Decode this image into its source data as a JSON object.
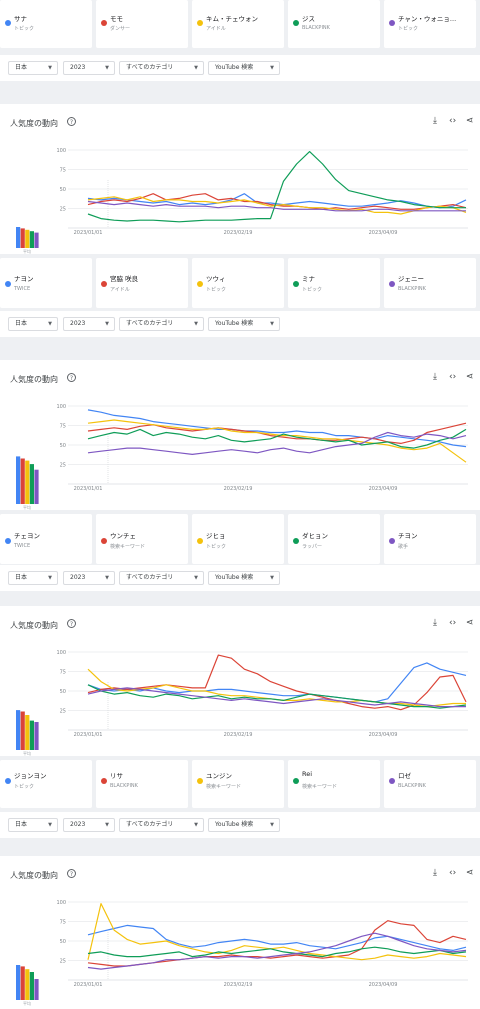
{
  "colors": [
    "#4285f4",
    "#db4437",
    "#f4c20d",
    "#0f9d58",
    "#7e57c2"
  ],
  "filters": {
    "region": "日本",
    "year": "2023",
    "category": "すべてのカテゴリ",
    "source": "YouTube 検索"
  },
  "panel_title": "人気度の動向",
  "axis_caption": "平均",
  "term_rows": [
    [
      {
        "name": "サナ",
        "sub": "トピック"
      },
      {
        "name": "モモ",
        "sub": "ダンサー"
      },
      {
        "name": "キム・チェウォン",
        "sub": "アイドル"
      },
      {
        "name": "ジス",
        "sub": "BLACKPINK"
      },
      {
        "name": "チャン・ウォニョ...",
        "sub": "トピック"
      }
    ],
    [
      {
        "name": "ナヨン",
        "sub": "TWICE"
      },
      {
        "name": "宮脇 咲良",
        "sub": "アイドル"
      },
      {
        "name": "ツウィ",
        "sub": "トピック"
      },
      {
        "name": "ミナ",
        "sub": "トピック"
      },
      {
        "name": "ジェニー",
        "sub": "BLACKPINK"
      }
    ],
    [
      {
        "name": "チェヨン",
        "sub": "TWICE"
      },
      {
        "name": "ウンチェ",
        "sub": "検索キーワード"
      },
      {
        "name": "ジヒョ",
        "sub": "トピック"
      },
      {
        "name": "ダヒョン",
        "sub": "ラッパー"
      },
      {
        "name": "チヨン",
        "sub": "歌手"
      }
    ],
    [
      {
        "name": "ジョンヨン",
        "sub": "トピック"
      },
      {
        "name": "リサ",
        "sub": "BLACKPINK"
      },
      {
        "name": "ユンジン",
        "sub": "検索キーワード"
      },
      {
        "name": "Rei",
        "sub": "検索キーワード"
      },
      {
        "name": "ロゼ",
        "sub": "BLACKPINK"
      }
    ]
  ],
  "chart_data": [
    {
      "type": "line",
      "title": "人気度の動向",
      "x_ticks": [
        "2023/01/01",
        "2023/02/19",
        "2023/04/09"
      ],
      "y_ticks": [
        25,
        50,
        75,
        100
      ],
      "ylim": [
        0,
        100
      ],
      "note_label": "",
      "averages": [
        30,
        28,
        26,
        24,
        22
      ],
      "series": [
        {
          "values": [
            38,
            36,
            38,
            36,
            34,
            32,
            34,
            30,
            32,
            30,
            32,
            36,
            44,
            32,
            32,
            30,
            32,
            34,
            32,
            30,
            28,
            28,
            30,
            32,
            35,
            32,
            28,
            26,
            28,
            36
          ]
        },
        {
          "values": [
            30,
            34,
            36,
            34,
            38,
            44,
            36,
            38,
            42,
            44,
            36,
            38,
            34,
            34,
            30,
            28,
            28,
            26,
            24,
            26,
            24,
            26,
            28,
            26,
            24,
            24,
            26,
            28,
            30,
            26
          ]
        },
        {
          "values": [
            36,
            38,
            40,
            36,
            40,
            34,
            36,
            36,
            34,
            34,
            32,
            34,
            36,
            32,
            28,
            30,
            28,
            26,
            26,
            24,
            22,
            24,
            20,
            20,
            18,
            22,
            26,
            28,
            26,
            20
          ]
        },
        {
          "values": [
            18,
            12,
            10,
            9,
            10,
            10,
            9,
            8,
            9,
            10,
            10,
            10,
            11,
            12,
            12,
            60,
            82,
            98,
            82,
            62,
            48,
            44,
            40,
            36,
            34,
            30,
            28,
            26,
            26,
            26
          ]
        },
        {
          "values": [
            34,
            32,
            30,
            32,
            30,
            28,
            30,
            28,
            28,
            28,
            26,
            28,
            28,
            26,
            26,
            24,
            24,
            24,
            24,
            22,
            22,
            22,
            24,
            24,
            22,
            22,
            22,
            22,
            22,
            22
          ]
        }
      ]
    },
    {
      "type": "line",
      "title": "人気度の動向",
      "x_ticks": [
        "2023/01/01",
        "2023/02/19",
        "2023/04/09"
      ],
      "y_ticks": [
        25,
        50,
        75,
        100
      ],
      "ylim": [
        0,
        100
      ],
      "note_label": "",
      "averages": [
        68,
        65,
        62,
        57,
        49
      ],
      "series": [
        {
          "values": [
            95,
            92,
            88,
            86,
            84,
            80,
            78,
            76,
            74,
            72,
            70,
            70,
            68,
            68,
            66,
            66,
            68,
            66,
            66,
            62,
            62,
            60,
            58,
            62,
            60,
            58,
            56,
            54,
            50,
            48
          ]
        },
        {
          "values": [
            68,
            70,
            72,
            70,
            74,
            76,
            72,
            70,
            68,
            70,
            72,
            70,
            68,
            66,
            62,
            60,
            58,
            58,
            56,
            56,
            58,
            60,
            58,
            54,
            52,
            56,
            66,
            70,
            74,
            78
          ]
        },
        {
          "values": [
            78,
            80,
            82,
            80,
            78,
            76,
            74,
            72,
            70,
            70,
            72,
            68,
            66,
            66,
            64,
            62,
            62,
            60,
            58,
            58,
            56,
            54,
            52,
            50,
            46,
            44,
            46,
            52,
            40,
            28
          ]
        },
        {
          "values": [
            58,
            62,
            66,
            64,
            70,
            62,
            66,
            64,
            60,
            58,
            62,
            56,
            54,
            56,
            58,
            64,
            60,
            58,
            56,
            54,
            56,
            50,
            52,
            54,
            48,
            46,
            50,
            56,
            60,
            70
          ]
        },
        {
          "values": [
            40,
            42,
            44,
            46,
            46,
            44,
            42,
            40,
            38,
            40,
            42,
            44,
            42,
            40,
            44,
            46,
            42,
            40,
            44,
            48,
            50,
            52,
            60,
            66,
            62,
            60,
            64,
            62,
            58,
            62
          ]
        }
      ]
    },
    {
      "type": "line",
      "title": "人気度の動向",
      "x_ticks": [
        "2023/01/01",
        "2023/02/19",
        "2023/04/09"
      ],
      "y_ticks": [
        25,
        50,
        75,
        100
      ],
      "ylim": [
        0,
        100
      ],
      "note_label": "",
      "averages": [
        57,
        55,
        50,
        42,
        40
      ],
      "series": [
        {
          "values": [
            58,
            52,
            50,
            52,
            50,
            54,
            50,
            48,
            50,
            50,
            52,
            52,
            50,
            48,
            46,
            44,
            44,
            46,
            44,
            42,
            40,
            38,
            36,
            40,
            60,
            80,
            86,
            78,
            74,
            70
          ]
        },
        {
          "values": [
            48,
            52,
            54,
            52,
            54,
            56,
            58,
            56,
            54,
            54,
            96,
            92,
            78,
            72,
            62,
            56,
            50,
            46,
            42,
            38,
            34,
            30,
            28,
            30,
            26,
            32,
            48,
            68,
            70,
            36
          ]
        },
        {
          "values": [
            78,
            62,
            52,
            50,
            52,
            54,
            58,
            54,
            50,
            50,
            46,
            44,
            44,
            42,
            40,
            38,
            38,
            40,
            38,
            36,
            36,
            38,
            36,
            34,
            34,
            32,
            30,
            32,
            34,
            34
          ]
        },
        {
          "values": [
            58,
            50,
            46,
            48,
            44,
            42,
            46,
            44,
            40,
            42,
            44,
            40,
            42,
            40,
            40,
            38,
            42,
            46,
            44,
            42,
            40,
            38,
            36,
            34,
            32,
            30,
            30,
            28,
            30,
            32
          ]
        },
        {
          "values": [
            46,
            50,
            52,
            54,
            52,
            50,
            48,
            46,
            44,
            42,
            40,
            38,
            40,
            38,
            36,
            34,
            36,
            38,
            40,
            38,
            36,
            34,
            32,
            34,
            36,
            34,
            32,
            30,
            30,
            30
          ]
        }
      ]
    },
    {
      "type": "line",
      "title": "人気度の動向",
      "x_ticks": [
        "2023/01/01",
        "2023/02/19",
        "2023/04/09"
      ],
      "y_ticks": [
        25,
        50,
        75,
        100
      ],
      "ylim": [
        0,
        100
      ],
      "note_label": "",
      "averages": [
        50,
        48,
        44,
        40,
        30
      ],
      "series": [
        {
          "values": [
            58,
            62,
            66,
            70,
            68,
            66,
            52,
            46,
            42,
            44,
            48,
            50,
            52,
            50,
            46,
            46,
            48,
            44,
            42,
            40,
            44,
            48,
            54,
            56,
            52,
            48,
            44,
            40,
            38,
            42
          ]
        },
        {
          "values": [
            22,
            20,
            18,
            18,
            20,
            22,
            24,
            26,
            28,
            30,
            30,
            32,
            30,
            30,
            28,
            30,
            32,
            30,
            28,
            30,
            32,
            40,
            64,
            76,
            72,
            70,
            52,
            48,
            56,
            52
          ]
        },
        {
          "values": [
            26,
            98,
            64,
            52,
            46,
            48,
            50,
            44,
            40,
            36,
            34,
            38,
            44,
            42,
            40,
            42,
            38,
            34,
            32,
            30,
            28,
            26,
            28,
            32,
            30,
            28,
            30,
            34,
            32,
            30
          ]
        },
        {
          "values": [
            34,
            36,
            32,
            30,
            30,
            32,
            34,
            36,
            30,
            32,
            36,
            34,
            36,
            38,
            40,
            36,
            34,
            32,
            30,
            34,
            36,
            40,
            42,
            40,
            36,
            34,
            36,
            38,
            34,
            36
          ]
        },
        {
          "values": [
            16,
            14,
            16,
            18,
            20,
            22,
            26,
            26,
            28,
            30,
            28,
            30,
            30,
            28,
            30,
            32,
            34,
            36,
            40,
            44,
            50,
            56,
            60,
            56,
            50,
            44,
            40,
            38,
            36,
            38
          ]
        }
      ]
    }
  ]
}
